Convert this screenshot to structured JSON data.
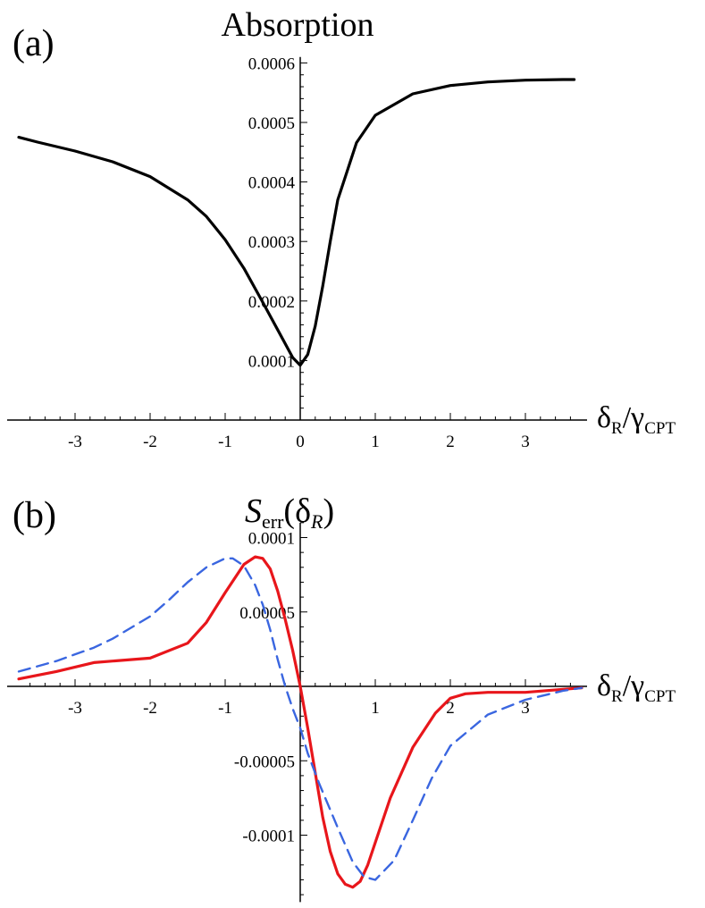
{
  "chart_data": [
    {
      "type": "line",
      "panel_label": "(a)",
      "title": "Absorption",
      "xlabel": {
        "main": "δ",
        "sub": "R",
        "sep": "/",
        "main2": "γ",
        "sub2": "CPT"
      },
      "xlim": [
        -3.75,
        3.75
      ],
      "ylim": [
        0,
        0.00061
      ],
      "xticks": [
        -3,
        -2,
        -1,
        0,
        1,
        2,
        3
      ],
      "xtick_labels": [
        "-3",
        "-2",
        "-1",
        "0",
        "1",
        "2",
        "3"
      ],
      "yticks": [
        0.0001,
        0.0002,
        0.0003,
        0.0004,
        0.0005,
        0.0006
      ],
      "ytick_labels": [
        "0.0001",
        "0.0002",
        "0.0003",
        "0.0004",
        "0.0005",
        "0.0006"
      ],
      "series": [
        {
          "color": "#000000",
          "dash": "solid",
          "x": [
            -3.75,
            -3.5,
            -3.0,
            -2.5,
            -2.0,
            -1.5,
            -1.25,
            -1.0,
            -0.75,
            -0.5,
            -0.25,
            -0.1,
            0.0,
            0.1,
            0.2,
            0.3,
            0.4,
            0.5,
            0.75,
            1.0,
            1.5,
            2.0,
            2.5,
            3.0,
            3.5,
            3.65
          ],
          "y": [
            0.000475,
            0.000467,
            0.000452,
            0.000434,
            0.000409,
            0.00037,
            0.000342,
            0.000303,
            0.000255,
            0.000198,
            0.00014,
            0.000105,
            9.2e-05,
            0.00011,
            0.000158,
            0.000225,
            0.0003,
            0.00037,
            0.000466,
            0.000512,
            0.000548,
            0.000562,
            0.000568,
            0.000571,
            0.000572,
            0.000572
          ]
        }
      ]
    },
    {
      "type": "line",
      "panel_label": "(b)",
      "title": {
        "main": "S",
        "sub": "err",
        "arg_open": "(",
        "arg": "δ",
        "arg_sub": "R",
        "arg_close": ")"
      },
      "xlabel": {
        "main": "δ",
        "sub": "R",
        "sep": "/",
        "main2": "γ",
        "sub2": "CPT"
      },
      "xlim": [
        -3.75,
        3.75
      ],
      "ylim": [
        -0.000145,
        0.00011
      ],
      "xticks": [
        -3,
        -2,
        -1,
        0,
        1,
        2,
        3
      ],
      "xtick_labels": [
        "-3",
        "-2",
        "-1",
        "",
        "1",
        "2",
        "3"
      ],
      "yticks": [
        -0.0001,
        -5e-05,
        5e-05,
        0.0001
      ],
      "ytick_labels": [
        "-0.0001",
        "-0.00005",
        "0.00005",
        "0.0001"
      ],
      "series": [
        {
          "color": "#e8161b",
          "dash": "solid",
          "x": [
            -3.75,
            -3.25,
            -2.75,
            -2.5,
            -2.0,
            -1.5,
            -1.25,
            -1.0,
            -0.75,
            -0.6,
            -0.5,
            -0.4,
            -0.3,
            -0.2,
            -0.1,
            0.0,
            0.1,
            0.2,
            0.3,
            0.4,
            0.5,
            0.6,
            0.7,
            0.8,
            0.9,
            1.0,
            1.2,
            1.5,
            1.8,
            2.0,
            2.2,
            2.5,
            3.0,
            3.5,
            3.75
          ],
          "y": [
            5e-06,
            1e-05,
            1.6e-05,
            1.7e-05,
            1.9e-05,
            2.9e-05,
            4.3e-05,
            6.3e-05,
            8.2e-05,
            8.7e-05,
            8.6e-05,
            7.9e-05,
            6.4e-05,
            4.5e-05,
            2.4e-05,
            0.0,
            -2.8e-05,
            -5.8e-05,
            -8.8e-05,
            -0.000111,
            -0.000126,
            -0.000133,
            -0.000135,
            -0.000131,
            -0.00012,
            -0.000105,
            -7.5e-05,
            -4.1e-05,
            -1.8e-05,
            -8e-06,
            -5e-06,
            -4e-06,
            -4e-06,
            -2e-06,
            -1e-06
          ]
        },
        {
          "color": "#3a66e0",
          "dash": "dashed",
          "x": [
            -3.75,
            -3.25,
            -2.75,
            -2.5,
            -2.0,
            -1.75,
            -1.5,
            -1.25,
            -1.0,
            -0.9,
            -0.75,
            -0.6,
            -0.5,
            -0.4,
            -0.3,
            -0.2,
            -0.1,
            0.0,
            0.1,
            0.25,
            0.5,
            0.7,
            0.85,
            1.0,
            1.25,
            1.5,
            1.75,
            2.0,
            2.5,
            3.0,
            3.5,
            3.75
          ],
          "y": [
            1e-05,
            1.7e-05,
            2.6e-05,
            3.2e-05,
            4.7e-05,
            5.8e-05,
            7e-05,
            8e-05,
            8.6e-05,
            8.6e-05,
            8.1e-05,
            6.8e-05,
            5.5e-05,
            3.8e-05,
            1.8e-05,
            0.0,
            -1.5e-05,
            -2.8e-05,
            -4.5e-05,
            -6.5e-05,
            -9.5e-05,
            -0.000118,
            -0.000128,
            -0.00013,
            -0.000117,
            -9e-05,
            -6.2e-05,
            -4e-05,
            -1.9e-05,
            -9e-06,
            -3e-06,
            -1e-06
          ]
        }
      ]
    }
  ]
}
